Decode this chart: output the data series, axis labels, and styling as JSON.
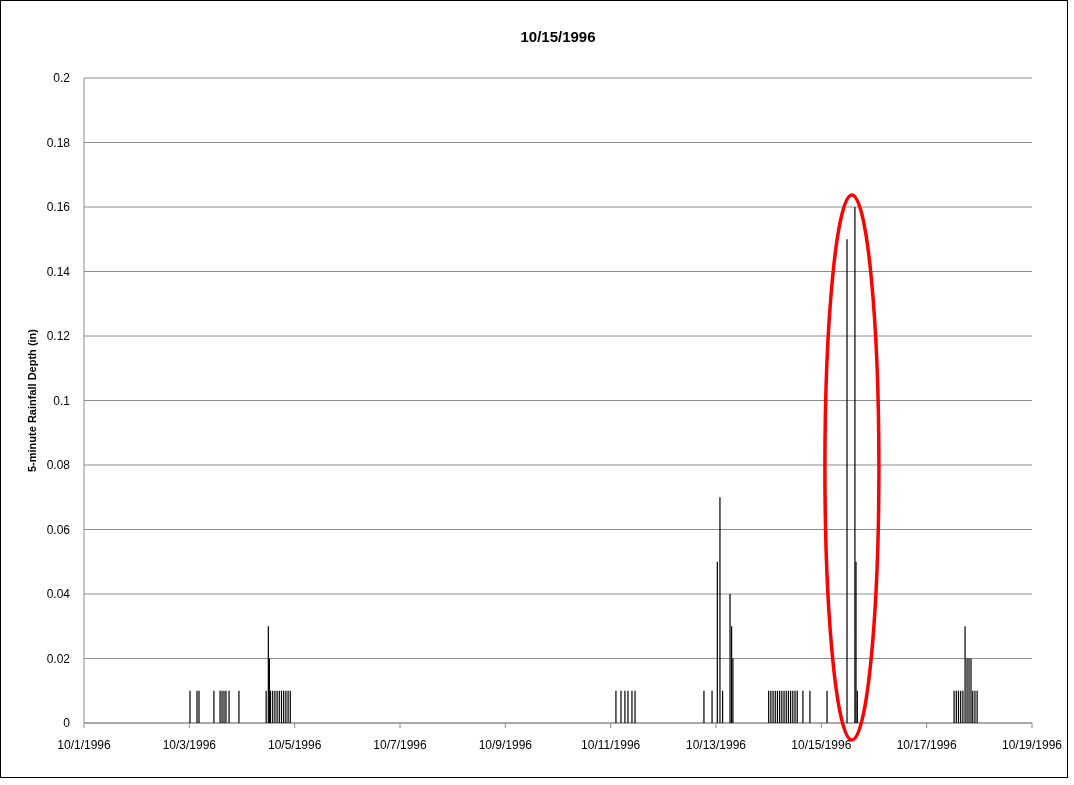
{
  "chart_data": {
    "type": "bar",
    "title": "10/15/1996",
    "ylabel": "5-minute Rainfall Depth (in)",
    "xlim": [
      "1996-10-01",
      "1996-10-19"
    ],
    "xticks": [
      {
        "value": "1996-10-01",
        "label": "10/1/1996"
      },
      {
        "value": "1996-10-03",
        "label": "10/3/1996"
      },
      {
        "value": "1996-10-05",
        "label": "10/5/1996"
      },
      {
        "value": "1996-10-07",
        "label": "10/7/1996"
      },
      {
        "value": "1996-10-09",
        "label": "10/9/1996"
      },
      {
        "value": "1996-10-11",
        "label": "10/11/1996"
      },
      {
        "value": "1996-10-13",
        "label": "10/13/1996"
      },
      {
        "value": "1996-10-15",
        "label": "10/15/1996"
      },
      {
        "value": "1996-10-17",
        "label": "10/17/1996"
      },
      {
        "value": "1996-10-19",
        "label": "10/19/1996"
      }
    ],
    "ylim": [
      0,
      0.2
    ],
    "yticks": [
      0,
      0.02,
      0.04,
      0.06,
      0.08,
      0.1,
      0.12,
      0.14,
      0.16,
      0.18,
      0.2
    ],
    "grid": "y",
    "series": [
      {
        "color": "#000000",
        "x": [
          "1996-10-03T00:18",
          "1996-10-03T03:30",
          "1996-10-03T04:24",
          "1996-10-03T11:12",
          "1996-10-03T14:00",
          "1996-10-03T14:54",
          "1996-10-03T15:48",
          "1996-10-03T16:42",
          "1996-10-03T18:06",
          "1996-10-03T22:36",
          "1996-10-04T11:00",
          "1996-10-04T12:00",
          "1996-10-04T12:30",
          "1996-10-04T13:00",
          "1996-10-04T14:00",
          "1996-10-04T15:00",
          "1996-10-04T16:00",
          "1996-10-04T17:00",
          "1996-10-04T18:00",
          "1996-10-04T19:00",
          "1996-10-04T20:00",
          "1996-10-04T21:00",
          "1996-10-04T22:00",
          "1996-10-11T02:24",
          "1996-10-11T04:42",
          "1996-10-11T06:30",
          "1996-10-11T07:54",
          "1996-10-11T09:42",
          "1996-10-11T11:06",
          "1996-10-12T18:30",
          "1996-10-12T22:12",
          "1996-10-13T00:36",
          "1996-10-13T01:48",
          "1996-10-13T03:00",
          "1996-10-13T06:24",
          "1996-10-13T07:06",
          "1996-10-13T07:42",
          "1996-10-14T00:00",
          "1996-10-14T01:00",
          "1996-10-14T02:00",
          "1996-10-14T03:00",
          "1996-10-14T04:00",
          "1996-10-14T05:00",
          "1996-10-14T06:00",
          "1996-10-14T07:00",
          "1996-10-14T08:00",
          "1996-10-14T09:00",
          "1996-10-14T10:00",
          "1996-10-14T11:00",
          "1996-10-14T12:00",
          "1996-10-14T13:00",
          "1996-10-14T15:36",
          "1996-10-14T18:48",
          "1996-10-15T02:36",
          "1996-10-15T11:42",
          "1996-10-15T15:18",
          "1996-10-15T15:48",
          "1996-10-15T16:24",
          "1996-10-17T12:30",
          "1996-10-17T13:30",
          "1996-10-17T14:30",
          "1996-10-17T15:30",
          "1996-10-17T16:30",
          "1996-10-17T17:30",
          "1996-10-17T18:24",
          "1996-10-17T19:18",
          "1996-10-17T20:12",
          "1996-10-17T21:00",
          "1996-10-17T22:00",
          "1996-10-17T23:00"
        ],
        "values": [
          0.01,
          0.01,
          0.01,
          0.01,
          0.01,
          0.01,
          0.01,
          0.01,
          0.01,
          0.01,
          0.01,
          0.03,
          0.02,
          0.01,
          0.01,
          0.01,
          0.01,
          0.01,
          0.01,
          0.01,
          0.01,
          0.01,
          0.01,
          0.01,
          0.01,
          0.01,
          0.01,
          0.01,
          0.01,
          0.01,
          0.01,
          0.05,
          0.07,
          0.01,
          0.04,
          0.03,
          0.02,
          0.01,
          0.01,
          0.01,
          0.01,
          0.01,
          0.01,
          0.01,
          0.01,
          0.01,
          0.01,
          0.01,
          0.01,
          0.01,
          0.01,
          0.01,
          0.01,
          0.01,
          0.15,
          0.16,
          0.05,
          0.01,
          0.01,
          0.01,
          0.01,
          0.01,
          0.01,
          0.03,
          0.02,
          0.02,
          0.02,
          0.01,
          0.01,
          0.01
        ]
      }
    ]
  }
}
